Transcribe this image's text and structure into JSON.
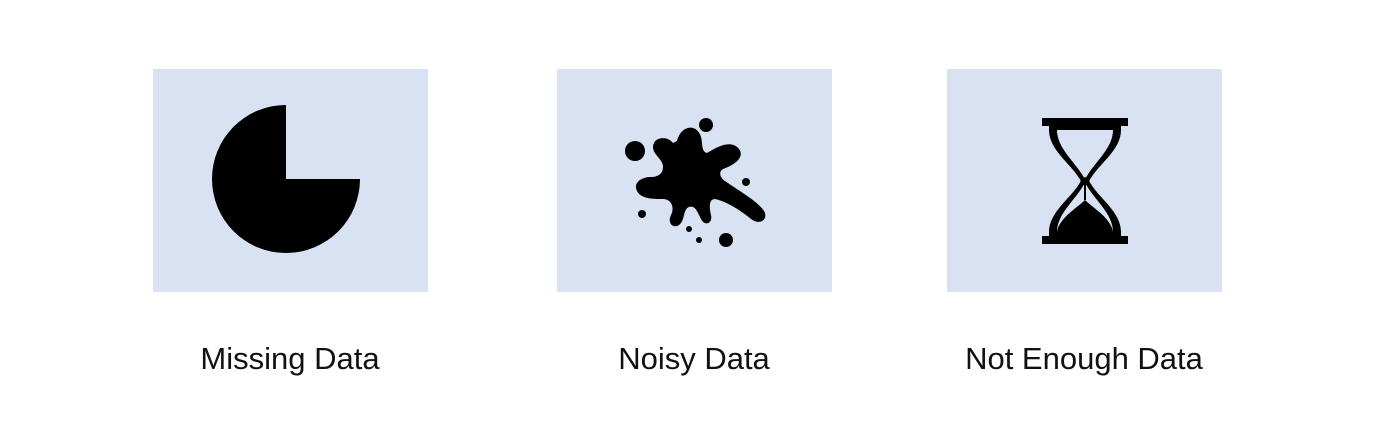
{
  "panels": [
    {
      "label": "Missing Data",
      "icon": "pie-chart-missing-quarter-icon"
    },
    {
      "label": "Noisy Data",
      "icon": "ink-splatter-icon"
    },
    {
      "label": "Not Enough Data",
      "icon": "hourglass-icon"
    }
  ],
  "colors": {
    "card_background": "#d9e2f2",
    "icon": "#000000",
    "label_text": "#111111"
  }
}
